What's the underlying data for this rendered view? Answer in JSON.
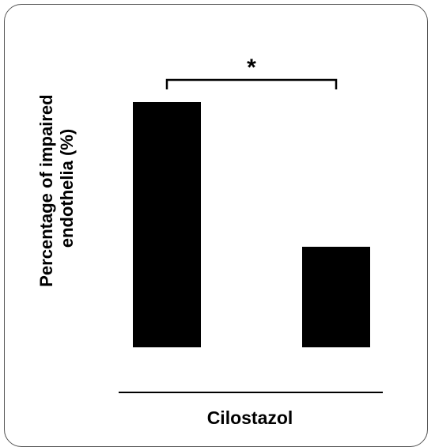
{
  "chart_data": {
    "type": "bar",
    "categories": [
      "",
      ""
    ],
    "values": [
      100,
      41
    ],
    "ylabel_line1": "Percentage of impaired",
    "ylabel_line2": "endothelia (%)",
    "xlabel": "Cilostazol",
    "ylim": [
      0,
      110
    ],
    "grid": false,
    "significance": {
      "between": [
        0,
        1
      ],
      "marker": "*"
    },
    "bar_color": "#000000"
  }
}
